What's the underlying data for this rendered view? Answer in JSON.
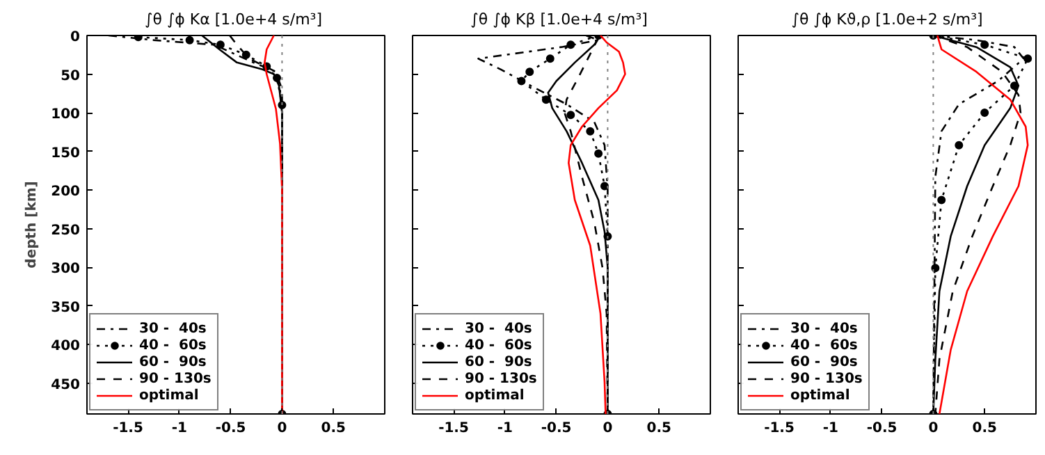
{
  "chart_data": [
    {
      "type": "line",
      "title": "∫θ ∫ϕ Kα  [1.0e+4 s/m³]",
      "ylabel": "depth [km]",
      "xlim": [
        -1.9,
        1.0
      ],
      "ylim": [
        490,
        0
      ],
      "xticks": [
        -1.5,
        -1,
        -0.5,
        0,
        0.5
      ],
      "yticks": [
        0,
        50,
        100,
        150,
        200,
        250,
        300,
        350,
        400,
        450
      ],
      "grid": false,
      "legend": "bottom left",
      "ref_lines": [
        {
          "axis": "x",
          "value": 0,
          "color": "#808080",
          "line_style": "dotted"
        }
      ],
      "series": [
        {
          "name": "30 -  40s",
          "color": "#000000",
          "line_style": "dashdot",
          "x": [
            -1.69,
            -1.25,
            -0.66,
            -0.28,
            -0.06,
            -0.02,
            0,
            0
          ],
          "values": [
            0,
            6,
            12,
            35,
            47,
            70,
            100,
            490
          ]
        },
        {
          "name": "40 -  60s",
          "color": "#000000",
          "line_style": "dotted",
          "marker": "circle",
          "x": [
            -1.4,
            -0.9,
            -0.6,
            -0.35,
            -0.15,
            -0.05,
            0,
            0
          ],
          "values": [
            2,
            6,
            12,
            25,
            40,
            55,
            90,
            490
          ]
        },
        {
          "name": "60 -  90s",
          "color": "#000000",
          "line_style": "solid",
          "x": [
            -0.78,
            -0.61,
            -0.44,
            -0.19,
            -0.08,
            -0.03,
            0,
            0
          ],
          "values": [
            0,
            18,
            35,
            44,
            50,
            65,
            100,
            490
          ]
        },
        {
          "name": "90 - 130s",
          "color": "#000000",
          "line_style": "dashed",
          "x": [
            -0.51,
            -0.44,
            -0.32,
            -0.06,
            0,
            0
          ],
          "values": [
            0,
            12,
            30,
            47,
            70,
            490
          ]
        },
        {
          "name": "optimal",
          "color": "#ff0000",
          "line_style": "solid",
          "x": [
            -0.08,
            -0.15,
            -0.17,
            -0.15,
            -0.06,
            -0.02,
            0,
            0
          ],
          "values": [
            0,
            18,
            35,
            50,
            95,
            140,
            200,
            490
          ]
        }
      ]
    },
    {
      "type": "line",
      "title": "∫θ ∫ϕ Kβ  [1.0e+4 s/m³]",
      "xlim": [
        -1.9,
        1.0
      ],
      "ylim": [
        490,
        0
      ],
      "xticks": [
        -1.5,
        -1,
        -0.5,
        0,
        0.5
      ],
      "yticks": [
        0,
        50,
        100,
        150,
        200,
        250,
        300,
        350,
        400,
        450
      ],
      "tick_labels": "x",
      "grid": false,
      "legend": "bottom left",
      "ref_lines": [
        {
          "axis": "x",
          "value": 0,
          "color": "#808080",
          "line_style": "dotted"
        }
      ],
      "series": [
        {
          "name": "30 -  40s",
          "color": "#000000",
          "line_style": "dashdot",
          "x": [
            -0.21,
            -0.09,
            -0.45,
            -1.26,
            -1.04,
            -0.75,
            -0.4,
            -0.13,
            -0.03,
            0,
            0
          ],
          "values": [
            0,
            6,
            15,
            30,
            44,
            65,
            89,
            112,
            142,
            200,
            490
          ]
        },
        {
          "name": "40 -  60s",
          "color": "#000000",
          "line_style": "dotted",
          "marker": "circle",
          "x": [
            -0.09,
            -0.36,
            -0.56,
            -0.76,
            -0.84,
            -0.6,
            -0.36,
            -0.17,
            -0.09,
            -0.03,
            0,
            0
          ],
          "values": [
            0,
            12,
            30,
            47,
            59,
            83,
            103,
            124,
            153,
            195,
            260,
            490
          ]
        },
        {
          "name": "60 -  90s",
          "color": "#000000",
          "line_style": "solid",
          "x": [
            -0.07,
            -0.13,
            -0.32,
            -0.5,
            -0.58,
            -0.54,
            -0.4,
            -0.25,
            -0.09,
            -0.03,
            0,
            0
          ],
          "values": [
            0,
            12,
            35,
            59,
            74,
            94,
            124,
            165,
            213,
            254,
            300,
            490
          ]
        },
        {
          "name": "90 - 130s",
          "color": "#000000",
          "line_style": "dashed",
          "x": [
            -0.09,
            -0.17,
            -0.28,
            -0.4,
            -0.42,
            -0.36,
            -0.25,
            -0.13,
            -0.05,
            -0.01,
            0
          ],
          "values": [
            3,
            24,
            53,
            83,
            100,
            124,
            183,
            242,
            301,
            360,
            490
          ]
        },
        {
          "name": "optimal",
          "color": "#ff0000",
          "line_style": "solid",
          "x": [
            -0.07,
            -0.01,
            0.11,
            0.15,
            0.17,
            0.09,
            -0.09,
            -0.25,
            -0.36,
            -0.38,
            -0.32,
            -0.17,
            -0.07,
            -0.03,
            -0.02
          ],
          "values": [
            0,
            9,
            21,
            35,
            50,
            71,
            94,
            118,
            142,
            165,
            213,
            272,
            360,
            449,
            490
          ]
        }
      ]
    },
    {
      "type": "line",
      "title": "∫θ ∫ϕ Kϑ,ρ [1.0e+2 s/m³]",
      "xlim": [
        -1.9,
        1.0
      ],
      "ylim": [
        490,
        0
      ],
      "xticks": [
        -1.5,
        -1,
        -0.5,
        0,
        0.5
      ],
      "yticks": [
        0,
        50,
        100,
        150,
        200,
        250,
        300,
        350,
        400,
        450
      ],
      "tick_labels": "x",
      "grid": false,
      "legend": "bottom left",
      "ref_lines": [
        {
          "axis": "x",
          "value": 0,
          "color": "#808080",
          "line_style": "dotted"
        }
      ],
      "series": [
        {
          "name": "30 -  40s",
          "color": "#000000",
          "line_style": "dashdot",
          "x": [
            0,
            0.42,
            0.79,
            0.88,
            0.63,
            0.25,
            0.08,
            0.02,
            0
          ],
          "values": [
            0,
            6,
            15,
            30,
            59,
            89,
            124,
            183,
            490
          ]
        },
        {
          "name": "40 -  60s",
          "color": "#000000",
          "line_style": "dotted",
          "marker": "circle",
          "x": [
            0,
            0.5,
            0.92,
            0.79,
            0.5,
            0.25,
            0.08,
            0.02,
            0
          ],
          "values": [
            0,
            12,
            30,
            65,
            100,
            142,
            213,
            301,
            490
          ]
        },
        {
          "name": "60 -  90s",
          "color": "#000000",
          "line_style": "solid",
          "x": [
            0,
            0.42,
            0.75,
            0.83,
            0.75,
            0.5,
            0.33,
            0.17,
            0.06,
            0.02,
            0
          ],
          "values": [
            0,
            15,
            41,
            65,
            94,
            142,
            195,
            260,
            331,
            419,
            490
          ]
        },
        {
          "name": "90 - 130s",
          "color": "#000000",
          "line_style": "dashed",
          "x": [
            0,
            0.33,
            0.67,
            0.83,
            0.85,
            0.75,
            0.58,
            0.38,
            0.19,
            0.06,
            0.02
          ],
          "values": [
            0,
            15,
            47,
            77,
            100,
            142,
            195,
            260,
            331,
            419,
            490
          ]
        },
        {
          "name": "optimal",
          "color": "#ff0000",
          "line_style": "solid",
          "x": [
            0.04,
            0.08,
            0.42,
            0.75,
            0.9,
            0.92,
            0.83,
            0.58,
            0.33,
            0.17,
            0.06
          ],
          "values": [
            0,
            18,
            47,
            83,
            118,
            142,
            195,
            260,
            331,
            407,
            490
          ]
        }
      ]
    }
  ]
}
